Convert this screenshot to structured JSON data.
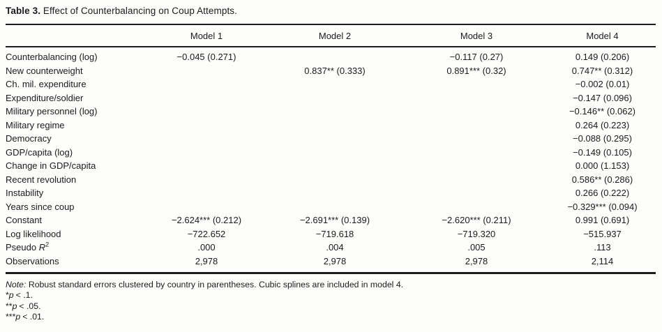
{
  "title": {
    "label": "Table 3.",
    "text": " Effect of Counterbalancing on Coup Attempts."
  },
  "table": {
    "columns": [
      "",
      "Model 1",
      "Model 2",
      "Model 3",
      "Model 4"
    ],
    "rows": [
      {
        "label": "Counterbalancing (log)",
        "values": [
          "−0.045 (0.271)",
          "",
          "−0.117 (0.27)",
          "0.149 (0.206)"
        ]
      },
      {
        "label": "New counterweight",
        "values": [
          "",
          "0.837** (0.333)",
          "0.891*** (0.32)",
          "0.747** (0.312)"
        ]
      },
      {
        "label": "Ch. mil. expenditure",
        "values": [
          "",
          "",
          "",
          "−0.002 (0.01)"
        ]
      },
      {
        "label": "Expenditure/soldier",
        "values": [
          "",
          "",
          "",
          "−0.147 (0.096)"
        ]
      },
      {
        "label": "Military personnel (log)",
        "values": [
          "",
          "",
          "",
          "−0.146** (0.062)"
        ]
      },
      {
        "label": "Military regime",
        "values": [
          "",
          "",
          "",
          "0.264 (0.223)"
        ]
      },
      {
        "label": "Democracy",
        "values": [
          "",
          "",
          "",
          "−0.088 (0.295)"
        ]
      },
      {
        "label": "GDP/capita (log)",
        "values": [
          "",
          "",
          "",
          "−0.149 (0.105)"
        ]
      },
      {
        "label": "Change in GDP/capita",
        "values": [
          "",
          "",
          "",
          "0.000 (1.153)"
        ]
      },
      {
        "label": "Recent revolution",
        "values": [
          "",
          "",
          "",
          "0.586** (0.286)"
        ]
      },
      {
        "label": "Instability",
        "values": [
          "",
          "",
          "",
          "0.266 (0.222)"
        ]
      },
      {
        "label": "Years since coup",
        "values": [
          "",
          "",
          "",
          "−0.329*** (0.094)"
        ]
      },
      {
        "label": "Constant",
        "values": [
          "−2.624*** (0.212)",
          "−2.691*** (0.139)",
          "−2.620*** (0.211)",
          "0.991 (0.691)"
        ]
      },
      {
        "label": "Log likelihood",
        "values": [
          "−722.652",
          "−719.618",
          "−719.320",
          "−515.937"
        ]
      },
      {
        "label": "Pseudo ",
        "label_it": "R",
        "label_sup": "2",
        "values": [
          ".000",
          ".004",
          ".005",
          ".113"
        ]
      },
      {
        "label": "Observations",
        "values": [
          "2,978",
          "2,978",
          "2,978",
          "2,114"
        ]
      }
    ]
  },
  "notes": {
    "note_prefix": "Note:",
    "note_text": " Robust standard errors clustered by country in parentheses. Cubic splines are included in model 4.",
    "significance": [
      {
        "stars": "*",
        "var": "p",
        "text": "< .1."
      },
      {
        "stars": "**",
        "var": "p",
        "text": "< .05."
      },
      {
        "stars": "***",
        "var": "p",
        "text": "< .01."
      }
    ]
  }
}
